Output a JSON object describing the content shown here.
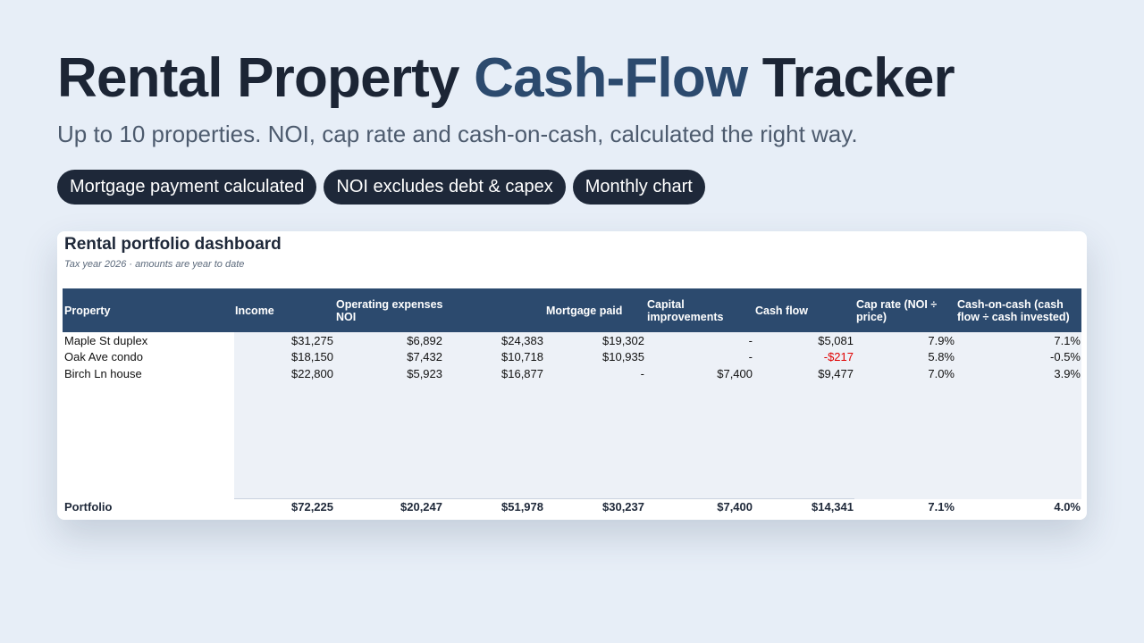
{
  "hero": {
    "title_pre": "Rental Property ",
    "title_accent": "Cash-Flow",
    "title_post": " Tracker",
    "subtitle": "Up to 10 properties. NOI, cap rate and cash-on-cash, calculated the right way."
  },
  "pills": [
    "Mortgage payment calculated",
    "NOI excludes debt & capex",
    "Monthly chart"
  ],
  "dashboard": {
    "title": "Rental portfolio dashboard",
    "subtitle": "Tax year 2026 · amounts are year to date",
    "columns": [
      "Property",
      "Income",
      "Operating expenses NOI",
      "",
      "Mortgage paid",
      "Capital improvements",
      "Cash flow",
      "Cap rate (NOI ÷ price)",
      "Cash-on-cash (cash flow ÷ cash invested)"
    ],
    "rows": [
      [
        "Maple St duplex",
        "$31,275",
        "$6,892",
        "$24,383",
        "$19,302",
        "-",
        "$5,081",
        "7.9%",
        "7.1%"
      ],
      [
        "Oak Ave condo",
        "$18,150",
        "$7,432",
        "$10,718",
        "$10,935",
        "-",
        "-$217",
        "5.8%",
        "-0.5%"
      ],
      [
        "Birch Ln house",
        "$22,800",
        "$5,923",
        "$16,877",
        "-",
        "$7,400",
        "$9,477",
        "7.0%",
        "3.9%"
      ]
    ],
    "total": [
      "Portfolio",
      "$72,225",
      "$20,247",
      "$51,978",
      "$30,237",
      "$7,400",
      "$14,341",
      "7.1%",
      "4.0%"
    ],
    "negative_color": "#e00000",
    "header_color": "#2c4a6e"
  }
}
